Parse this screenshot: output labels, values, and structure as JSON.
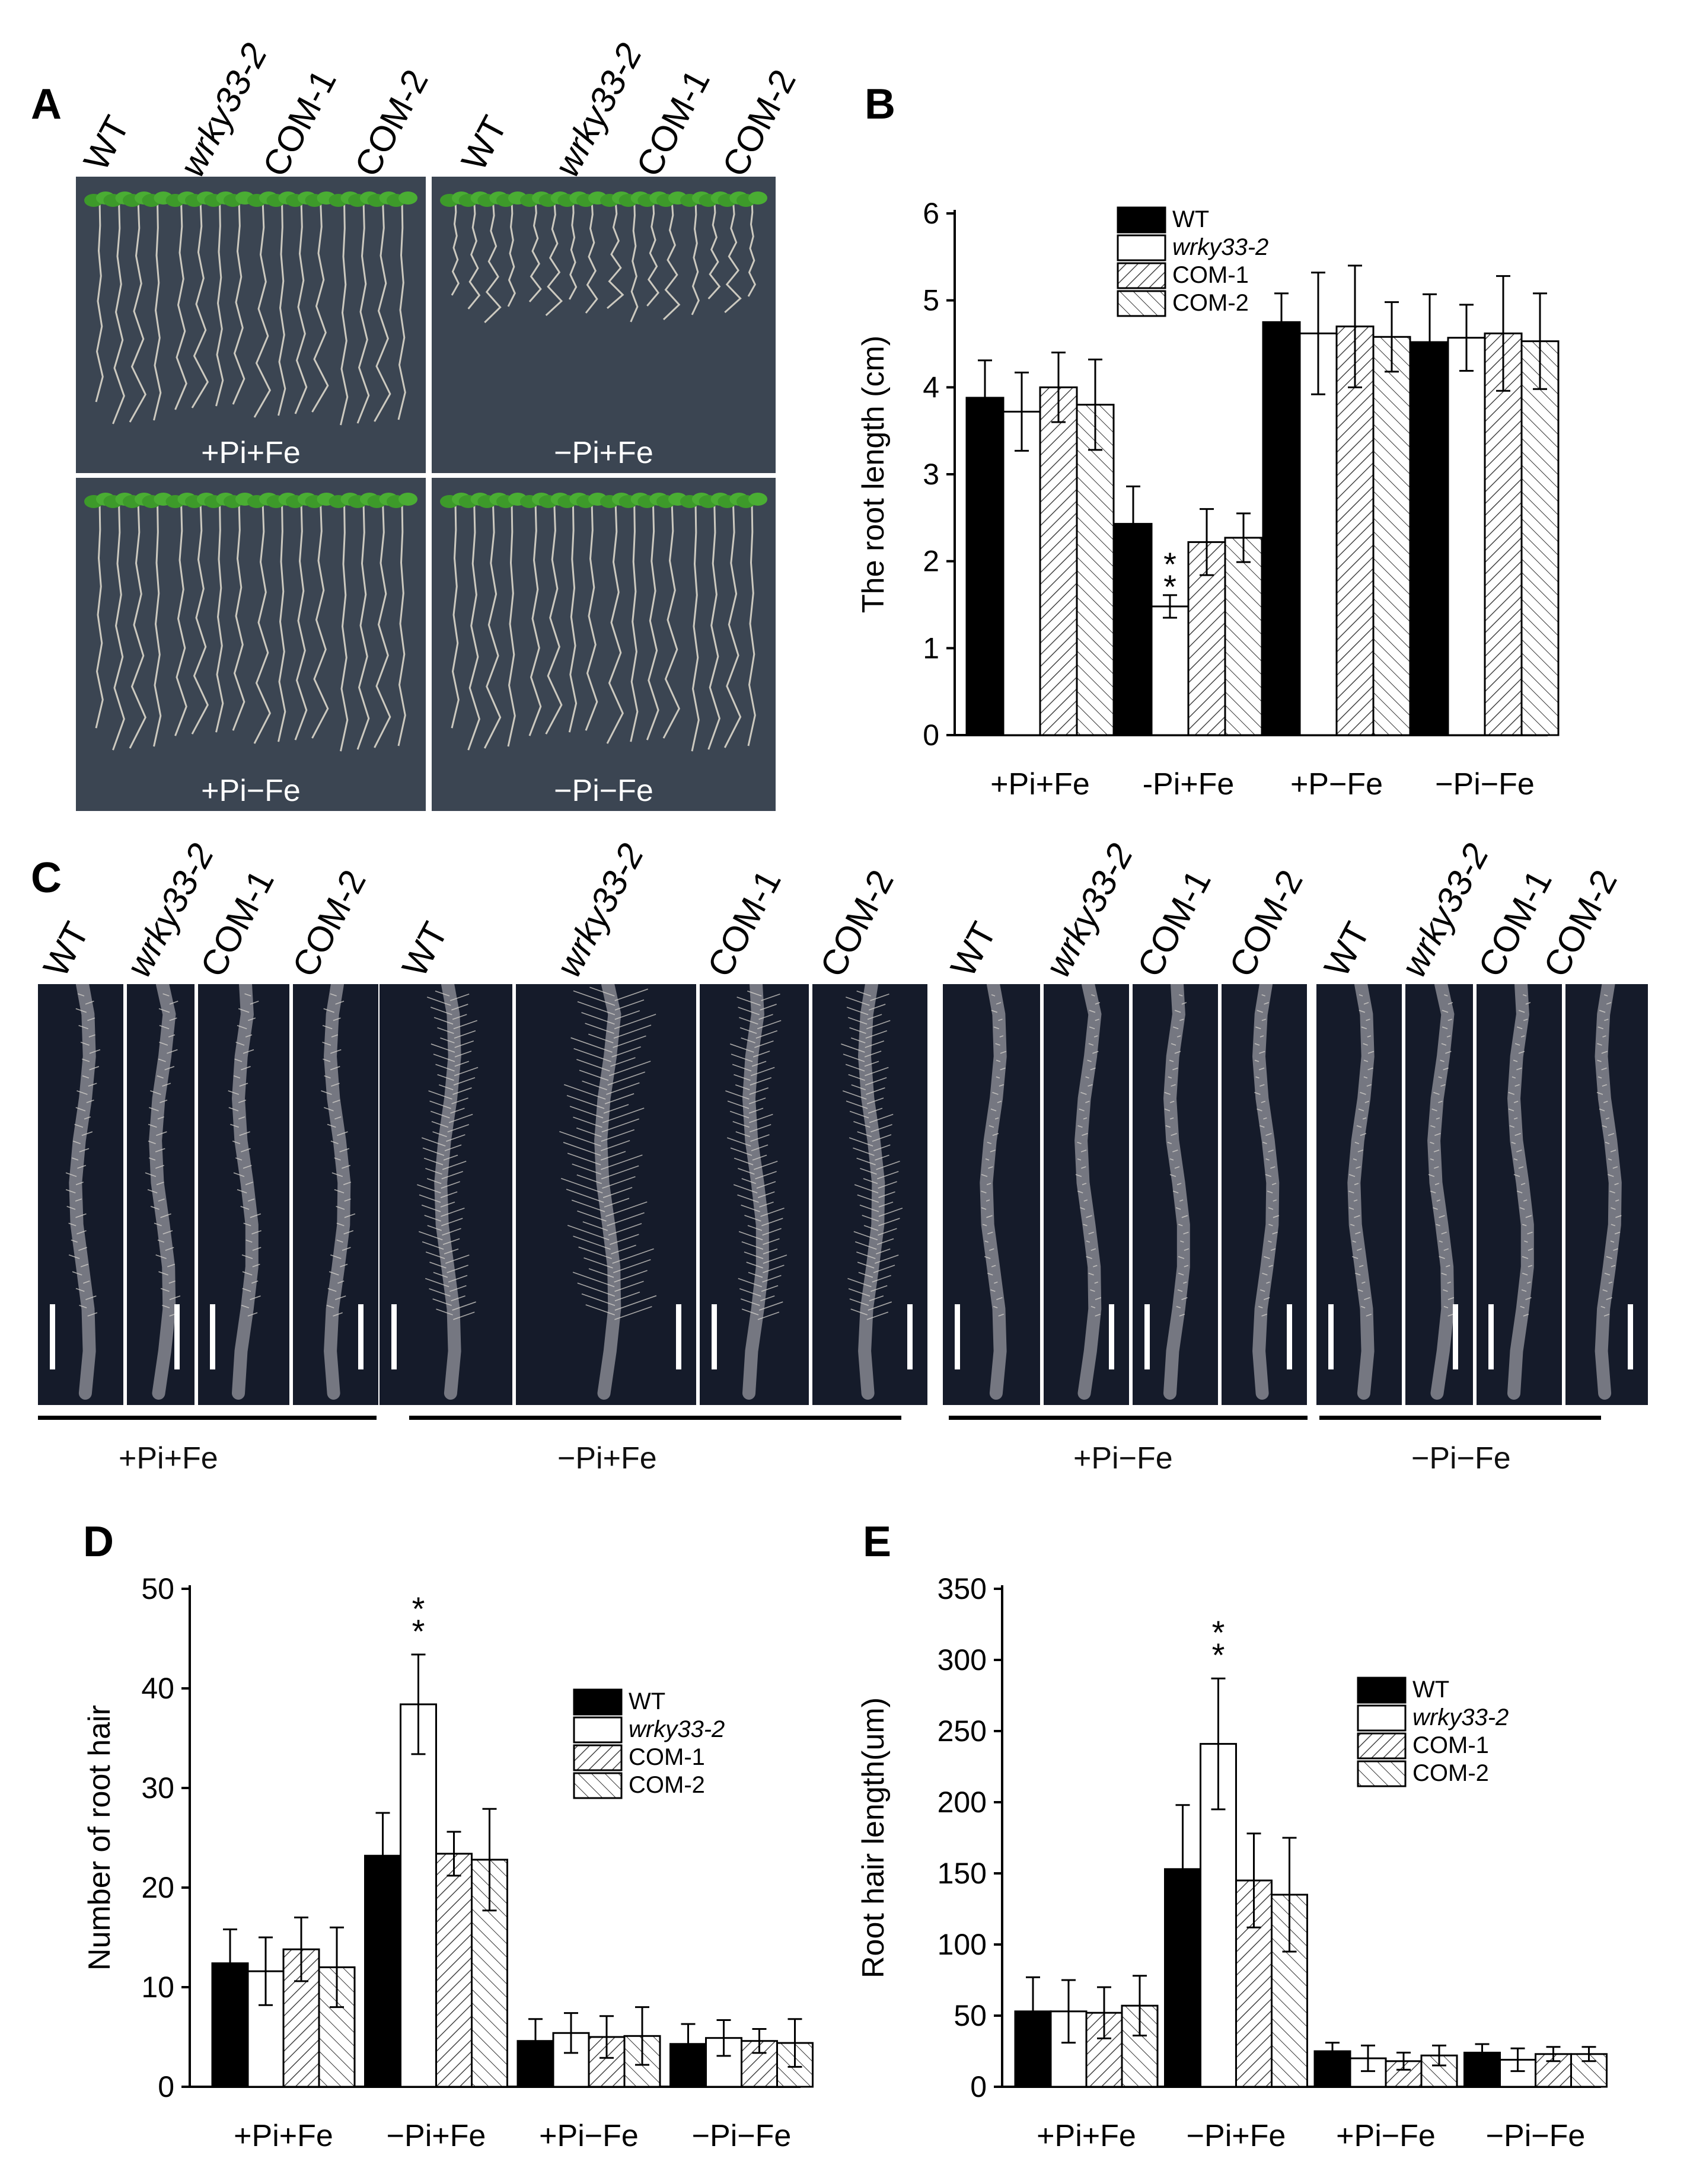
{
  "panels": {
    "A": "A",
    "B": "B",
    "C": "C",
    "D": "D",
    "E": "E"
  },
  "genotypes": [
    "WT",
    "wrky33-2",
    "COM-1",
    "COM-2"
  ],
  "panelA": {
    "conditions": [
      "+Pi+Fe",
      "−Pi+Fe",
      "+Pi−Fe",
      "−Pi−Fe"
    ]
  },
  "panelC": {
    "groups": [
      "+Pi+Fe",
      "−Pi+Fe",
      "+Pi−Fe",
      "−Pi−Fe"
    ]
  },
  "colors": {
    "photo_bg": "#3b4552",
    "root_bg": "#151b2a",
    "seedling": "#3d9a2a",
    "bar_wt": "#000000"
  },
  "chart_data": [
    {
      "id": "B",
      "type": "bar",
      "ylabel": "The root length (cm)",
      "ylim": [
        0,
        6
      ],
      "yticks": [
        0,
        1,
        2,
        3,
        4,
        5,
        6
      ],
      "categories": [
        "+Pi+Fe",
        "-Pi+Fe",
        "+P−Fe",
        "−Pi−Fe"
      ],
      "legend_position": "top-center",
      "series": [
        {
          "name": "WT",
          "values": [
            3.88,
            2.43,
            4.75,
            4.52
          ],
          "errors": [
            0.43,
            0.43,
            0.33,
            0.55
          ]
        },
        {
          "name": "wrky33-2",
          "values": [
            3.72,
            1.48,
            4.62,
            4.57
          ],
          "errors": [
            0.45,
            0.13,
            0.7,
            0.38
          ]
        },
        {
          "name": "COM-1",
          "values": [
            4.0,
            2.22,
            4.7,
            4.62
          ],
          "errors": [
            0.4,
            0.38,
            0.7,
            0.66
          ]
        },
        {
          "name": "COM-2",
          "values": [
            3.8,
            2.27,
            4.58,
            4.53
          ],
          "errors": [
            0.52,
            0.28,
            0.4,
            0.55
          ]
        }
      ],
      "annotations": [
        {
          "text": "**",
          "category": "-Pi+Fe",
          "series": "wrky33-2"
        }
      ]
    },
    {
      "id": "D",
      "type": "bar",
      "ylabel": "Number of  root hair",
      "ylim": [
        0,
        50
      ],
      "yticks": [
        0,
        10,
        20,
        30,
        40,
        50
      ],
      "categories": [
        "+Pi+Fe",
        "−Pi+Fe",
        "+Pi−Fe",
        "−Pi−Fe"
      ],
      "legend_position": "right",
      "series": [
        {
          "name": "WT",
          "values": [
            12.4,
            23.2,
            4.6,
            4.3
          ],
          "errors": [
            3.4,
            4.3,
            2.2,
            2.0
          ]
        },
        {
          "name": "wrky33-2",
          "values": [
            11.6,
            38.4,
            5.4,
            4.9
          ],
          "errors": [
            3.4,
            5.0,
            2.0,
            1.8
          ]
        },
        {
          "name": "COM-1",
          "values": [
            13.8,
            23.4,
            5.0,
            4.6
          ],
          "errors": [
            3.2,
            2.2,
            2.1,
            1.2
          ]
        },
        {
          "name": "COM-2",
          "values": [
            12.0,
            22.8,
            5.1,
            4.4
          ],
          "errors": [
            4.0,
            5.1,
            2.9,
            2.4
          ]
        }
      ],
      "annotations": [
        {
          "text": "**",
          "category": "−Pi+Fe",
          "series": "wrky33-2"
        }
      ]
    },
    {
      "id": "E",
      "type": "bar",
      "ylabel": "Root hair length(um)",
      "ylim": [
        0,
        350
      ],
      "yticks": [
        0,
        50,
        100,
        150,
        200,
        250,
        300,
        350
      ],
      "categories": [
        "+Pi+Fe",
        "−Pi+Fe",
        "+Pi−Fe",
        "−Pi−Fe"
      ],
      "legend_position": "right",
      "series": [
        {
          "name": "WT",
          "values": [
            53,
            153,
            25,
            24
          ],
          "errors": [
            24,
            45,
            6,
            6
          ]
        },
        {
          "name": "wrky33-2",
          "values": [
            53,
            241,
            20,
            19
          ],
          "errors": [
            22,
            46,
            9,
            8
          ]
        },
        {
          "name": "COM-1",
          "values": [
            52,
            145,
            18,
            23
          ],
          "errors": [
            18,
            33,
            6,
            5
          ]
        },
        {
          "name": "COM-2",
          "values": [
            57,
            135,
            22,
            23
          ],
          "errors": [
            21,
            40,
            7,
            5
          ]
        }
      ],
      "annotations": [
        {
          "text": "**",
          "category": "−Pi+Fe",
          "series": "wrky33-2"
        }
      ]
    }
  ]
}
